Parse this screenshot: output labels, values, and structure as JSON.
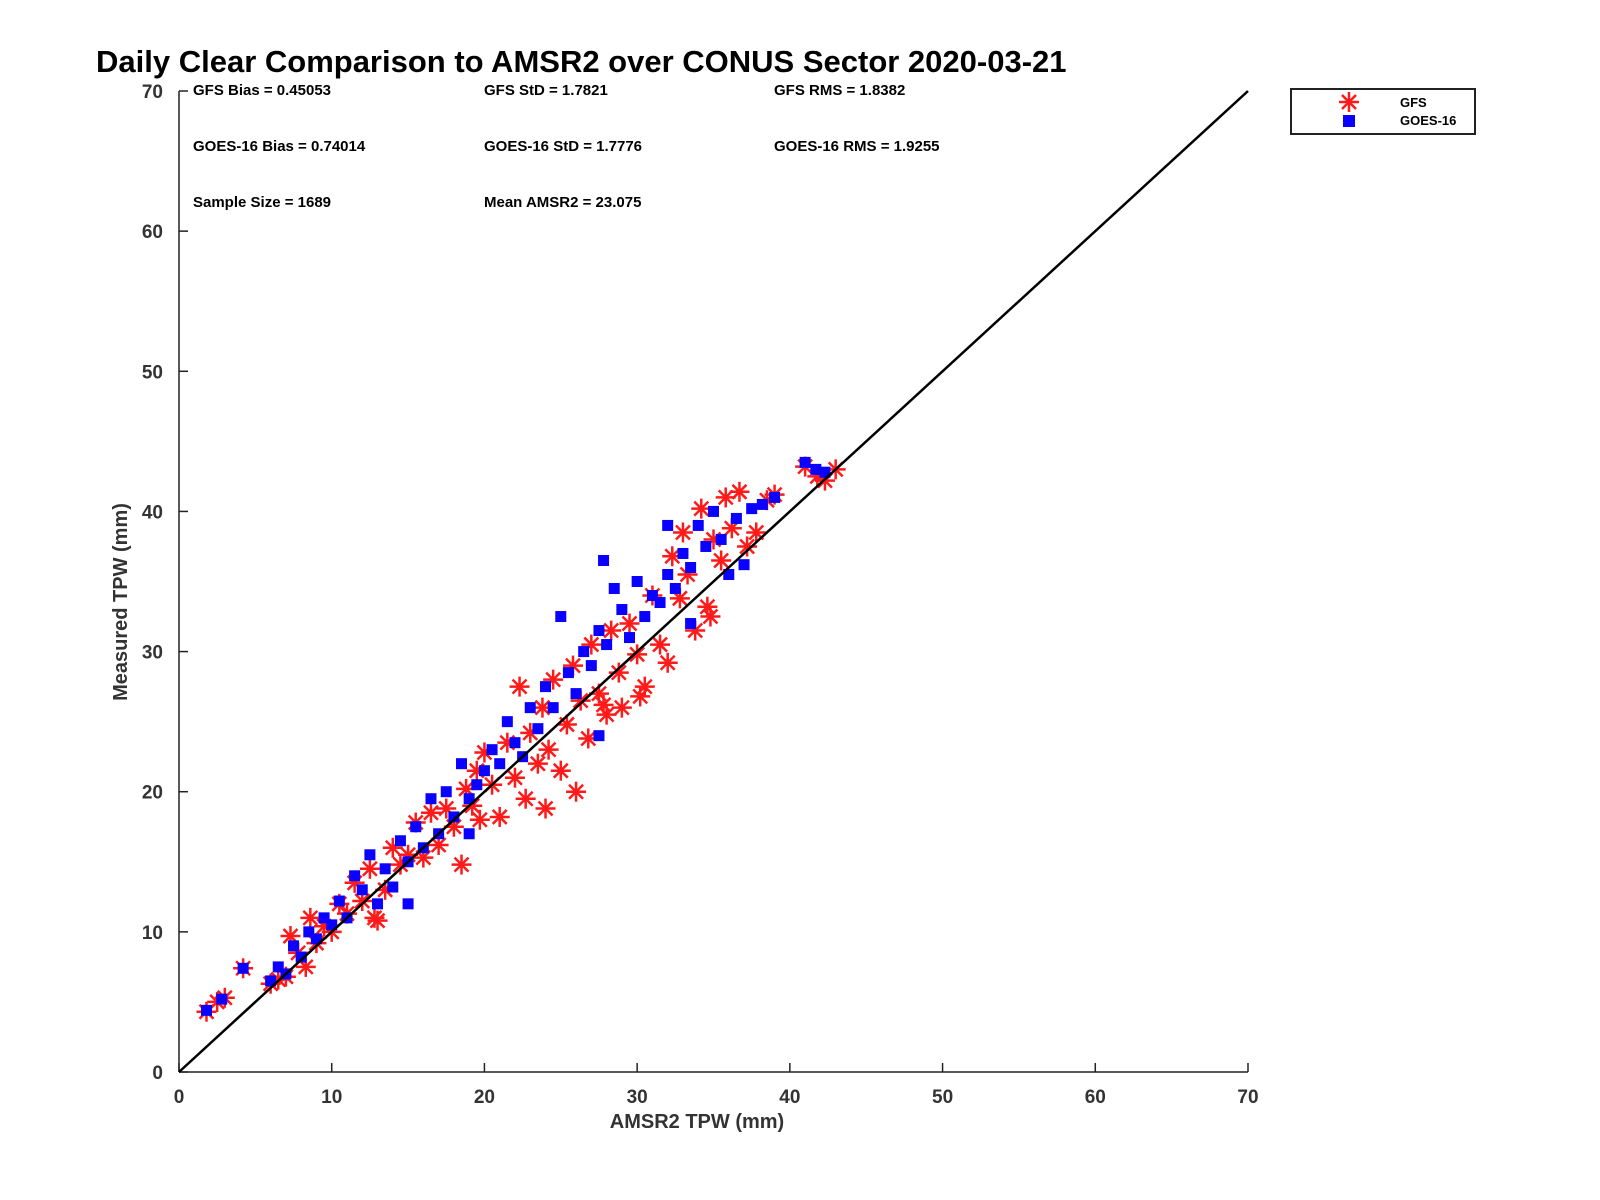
{
  "chart_data": {
    "type": "scatter",
    "title": "Daily Clear Comparison to AMSR2 over CONUS Sector 2020-03-21",
    "xlabel": "AMSR2 TPW (mm)",
    "ylabel": "Measured TPW (mm)",
    "xlim": [
      0,
      70
    ],
    "ylim": [
      0,
      70
    ],
    "xticks": [
      "0",
      "10",
      "20",
      "30",
      "40",
      "50",
      "60",
      "70"
    ],
    "yticks": [
      "0",
      "10",
      "20",
      "30",
      "40",
      "50",
      "60",
      "70"
    ],
    "grid": false,
    "legend_position": "top-right",
    "reference_line": {
      "from": [
        0,
        0
      ],
      "to": [
        70,
        70
      ],
      "color": "#000000"
    },
    "stats": [
      {
        "text": "GFS Bias = 0.45053"
      },
      {
        "text": "GFS StD = 1.7821"
      },
      {
        "text": "GFS RMS = 1.8382"
      },
      {
        "text": "GOES-16 Bias = 0.74014"
      },
      {
        "text": "GOES-16 StD = 1.7776"
      },
      {
        "text": "GOES-16 RMS = 1.9255"
      },
      {
        "text": "Sample Size = 1689"
      },
      {
        "text": "Mean AMSR2 = 23.075"
      }
    ],
    "series": [
      {
        "name": "GFS",
        "marker": "asterisk",
        "color": "#ff1a1a",
        "points": [
          [
            1.8,
            4.3
          ],
          [
            2.5,
            5.0
          ],
          [
            3.0,
            5.3
          ],
          [
            4.2,
            7.4
          ],
          [
            6.0,
            6.3
          ],
          [
            6.5,
            6.6
          ],
          [
            7.0,
            6.8
          ],
          [
            7.3,
            9.7
          ],
          [
            7.8,
            8.5
          ],
          [
            8.3,
            7.5
          ],
          [
            8.6,
            11.0
          ],
          [
            9.0,
            9.2
          ],
          [
            9.5,
            10.4
          ],
          [
            10.0,
            10.0
          ],
          [
            10.5,
            12.0
          ],
          [
            11.0,
            11.3
          ],
          [
            11.5,
            13.5
          ],
          [
            12.0,
            12.2
          ],
          [
            12.5,
            14.5
          ],
          [
            13.0,
            10.8
          ],
          [
            13.5,
            13.0
          ],
          [
            14.0,
            16.0
          ],
          [
            14.5,
            14.8
          ],
          [
            15.0,
            15.5
          ],
          [
            15.5,
            17.8
          ],
          [
            16.0,
            15.3
          ],
          [
            16.5,
            18.5
          ],
          [
            17.0,
            16.2
          ],
          [
            17.5,
            18.8
          ],
          [
            18.0,
            17.5
          ],
          [
            18.5,
            14.8
          ],
          [
            18.8,
            20.2
          ],
          [
            19.2,
            19.0
          ],
          [
            19.7,
            18.0
          ],
          [
            20.0,
            22.8
          ],
          [
            20.5,
            20.5
          ],
          [
            21.0,
            18.2
          ],
          [
            21.5,
            23.5
          ],
          [
            22.0,
            21.0
          ],
          [
            22.3,
            27.5
          ],
          [
            22.7,
            19.5
          ],
          [
            23.0,
            24.2
          ],
          [
            23.5,
            22.0
          ],
          [
            23.8,
            26.0
          ],
          [
            24.2,
            23.0
          ],
          [
            24.5,
            28.0
          ],
          [
            25.0,
            21.5
          ],
          [
            25.4,
            24.8
          ],
          [
            25.8,
            29.0
          ],
          [
            26.0,
            20.0
          ],
          [
            26.3,
            26.5
          ],
          [
            26.8,
            23.8
          ],
          [
            27.0,
            30.5
          ],
          [
            27.5,
            27.0
          ],
          [
            28.0,
            25.5
          ],
          [
            28.3,
            31.5
          ],
          [
            28.8,
            28.5
          ],
          [
            29.0,
            26.0
          ],
          [
            29.5,
            32.0
          ],
          [
            30.0,
            29.8
          ],
          [
            30.5,
            27.5
          ],
          [
            31.0,
            34.0
          ],
          [
            31.5,
            30.5
          ],
          [
            32.0,
            29.2
          ],
          [
            32.3,
            36.8
          ],
          [
            32.8,
            33.8
          ],
          [
            33.3,
            35.5
          ],
          [
            33.8,
            31.5
          ],
          [
            34.2,
            40.2
          ],
          [
            34.6,
            33.2
          ],
          [
            35.0,
            38.0
          ],
          [
            35.5,
            36.5
          ],
          [
            35.8,
            41.0
          ],
          [
            36.2,
            38.8
          ],
          [
            36.7,
            41.4
          ],
          [
            37.2,
            37.5
          ],
          [
            37.8,
            38.5
          ],
          [
            38.5,
            40.8
          ],
          [
            39.0,
            41.2
          ],
          [
            41.0,
            43.2
          ],
          [
            41.8,
            42.5
          ],
          [
            42.3,
            42.2
          ],
          [
            43.0,
            43.0
          ],
          [
            12.8,
            11.0
          ],
          [
            19.5,
            21.5
          ],
          [
            24.0,
            18.8
          ],
          [
            27.8,
            26.2
          ],
          [
            30.2,
            26.8
          ],
          [
            33.0,
            38.5
          ],
          [
            34.8,
            32.5
          ]
        ]
      },
      {
        "name": "GOES-16",
        "marker": "square",
        "color": "#0a00ff",
        "points": [
          [
            1.8,
            4.4
          ],
          [
            2.8,
            5.2
          ],
          [
            4.2,
            7.4
          ],
          [
            6.0,
            6.5
          ],
          [
            6.5,
            7.5
          ],
          [
            7.0,
            7.0
          ],
          [
            7.5,
            9.0
          ],
          [
            8.0,
            8.2
          ],
          [
            8.5,
            10.0
          ],
          [
            9.0,
            9.5
          ],
          [
            9.5,
            11.0
          ],
          [
            10.0,
            10.5
          ],
          [
            10.5,
            12.2
          ],
          [
            11.0,
            11.0
          ],
          [
            11.5,
            14.0
          ],
          [
            12.0,
            13.0
          ],
          [
            12.5,
            15.5
          ],
          [
            13.0,
            12.0
          ],
          [
            13.5,
            14.5
          ],
          [
            14.0,
            13.2
          ],
          [
            14.5,
            16.5
          ],
          [
            15.0,
            15.0
          ],
          [
            15.5,
            17.5
          ],
          [
            16.0,
            16.0
          ],
          [
            16.5,
            19.5
          ],
          [
            17.0,
            17.0
          ],
          [
            17.5,
            20.0
          ],
          [
            18.0,
            18.2
          ],
          [
            18.5,
            22.0
          ],
          [
            19.0,
            19.5
          ],
          [
            19.5,
            20.5
          ],
          [
            20.0,
            21.5
          ],
          [
            20.5,
            23.0
          ],
          [
            21.0,
            22.0
          ],
          [
            21.5,
            25.0
          ],
          [
            22.0,
            23.5
          ],
          [
            22.5,
            22.5
          ],
          [
            23.0,
            26.0
          ],
          [
            23.5,
            24.5
          ],
          [
            24.0,
            27.5
          ],
          [
            24.5,
            26.0
          ],
          [
            25.0,
            32.5
          ],
          [
            25.5,
            28.5
          ],
          [
            26.0,
            27.0
          ],
          [
            26.5,
            30.0
          ],
          [
            27.0,
            29.0
          ],
          [
            27.5,
            31.5
          ],
          [
            27.8,
            36.5
          ],
          [
            28.0,
            30.5
          ],
          [
            28.5,
            34.5
          ],
          [
            29.0,
            33.0
          ],
          [
            29.5,
            31.0
          ],
          [
            30.0,
            35.0
          ],
          [
            30.5,
            32.5
          ],
          [
            31.0,
            34.0
          ],
          [
            31.5,
            33.5
          ],
          [
            32.0,
            35.5
          ],
          [
            32.5,
            34.5
          ],
          [
            33.0,
            37.0
          ],
          [
            33.5,
            36.0
          ],
          [
            34.0,
            39.0
          ],
          [
            34.5,
            37.5
          ],
          [
            35.0,
            40.0
          ],
          [
            35.5,
            38.0
          ],
          [
            36.0,
            35.5
          ],
          [
            36.5,
            39.5
          ],
          [
            37.0,
            36.2
          ],
          [
            37.5,
            40.2
          ],
          [
            38.2,
            40.5
          ],
          [
            39.0,
            41.0
          ],
          [
            41.0,
            43.5
          ],
          [
            41.7,
            43.0
          ],
          [
            42.3,
            42.8
          ],
          [
            32.0,
            39.0
          ],
          [
            27.5,
            24.0
          ],
          [
            19.0,
            17.0
          ],
          [
            15.0,
            12.0
          ],
          [
            33.5,
            32.0
          ]
        ]
      }
    ]
  }
}
